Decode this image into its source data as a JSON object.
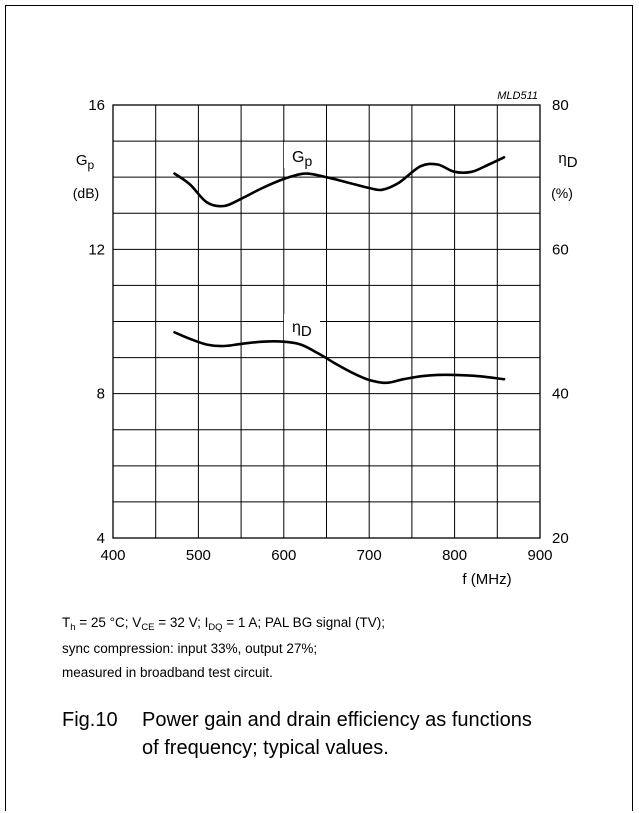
{
  "chart_data": {
    "type": "line",
    "figure_code": "MLD511",
    "x": {
      "label": "f (MHz)",
      "range": [
        400,
        900
      ],
      "ticks": [
        400,
        500,
        600,
        700,
        800,
        900
      ]
    },
    "y_left": {
      "symbol": "G",
      "subscript": "p",
      "unit": "(dB)",
      "range": [
        4,
        16
      ],
      "ticks": [
        4,
        8,
        12,
        16
      ]
    },
    "y_right": {
      "symbol": "η",
      "subscript": "D",
      "unit": "(%)",
      "range": [
        20,
        80
      ],
      "ticks": [
        20,
        40,
        60,
        80
      ]
    },
    "grid": true,
    "series": [
      {
        "name": "Gp",
        "label_symbol": "G",
        "label_subscript": "p",
        "axis": "left",
        "points": [
          [
            472,
            14.1
          ],
          [
            490,
            13.8
          ],
          [
            510,
            13.3
          ],
          [
            530,
            13.2
          ],
          [
            550,
            13.4
          ],
          [
            575,
            13.7
          ],
          [
            600,
            13.95
          ],
          [
            625,
            14.1
          ],
          [
            650,
            14.0
          ],
          [
            675,
            13.85
          ],
          [
            700,
            13.7
          ],
          [
            715,
            13.65
          ],
          [
            735,
            13.85
          ],
          [
            760,
            14.3
          ],
          [
            780,
            14.35
          ],
          [
            800,
            14.15
          ],
          [
            820,
            14.15
          ],
          [
            840,
            14.35
          ],
          [
            858,
            14.55
          ]
        ]
      },
      {
        "name": "ηD",
        "label_symbol": "η",
        "label_subscript": "D",
        "axis": "right",
        "points": [
          [
            472,
            48.5
          ],
          [
            490,
            47.6
          ],
          [
            510,
            46.8
          ],
          [
            530,
            46.6
          ],
          [
            550,
            46.9
          ],
          [
            575,
            47.2
          ],
          [
            600,
            47.2
          ],
          [
            620,
            46.8
          ],
          [
            640,
            45.6
          ],
          [
            660,
            44.2
          ],
          [
            680,
            42.9
          ],
          [
            700,
            41.9
          ],
          [
            720,
            41.5
          ],
          [
            740,
            42.0
          ],
          [
            760,
            42.4
          ],
          [
            780,
            42.6
          ],
          [
            800,
            42.6
          ],
          [
            830,
            42.4
          ],
          [
            858,
            42.0
          ]
        ]
      }
    ]
  },
  "conditions": {
    "line1": {
      "t_sym": "T",
      "t_sub": "h",
      "t_rest": " = 25 °C; V",
      "v_sub": "CE",
      "v_rest": " = 32 V; I",
      "i_sub": "DQ",
      "i_rest": " = 1 A; PAL BG signal (TV);"
    },
    "line2": "sync compression: input 33%, output 27%;",
    "line3": "measured in broadband test circuit."
  },
  "caption": {
    "number": "Fig.10",
    "text_line1": "Power gain and drain efficiency as functions",
    "text_line2": "of frequency; typical values."
  }
}
